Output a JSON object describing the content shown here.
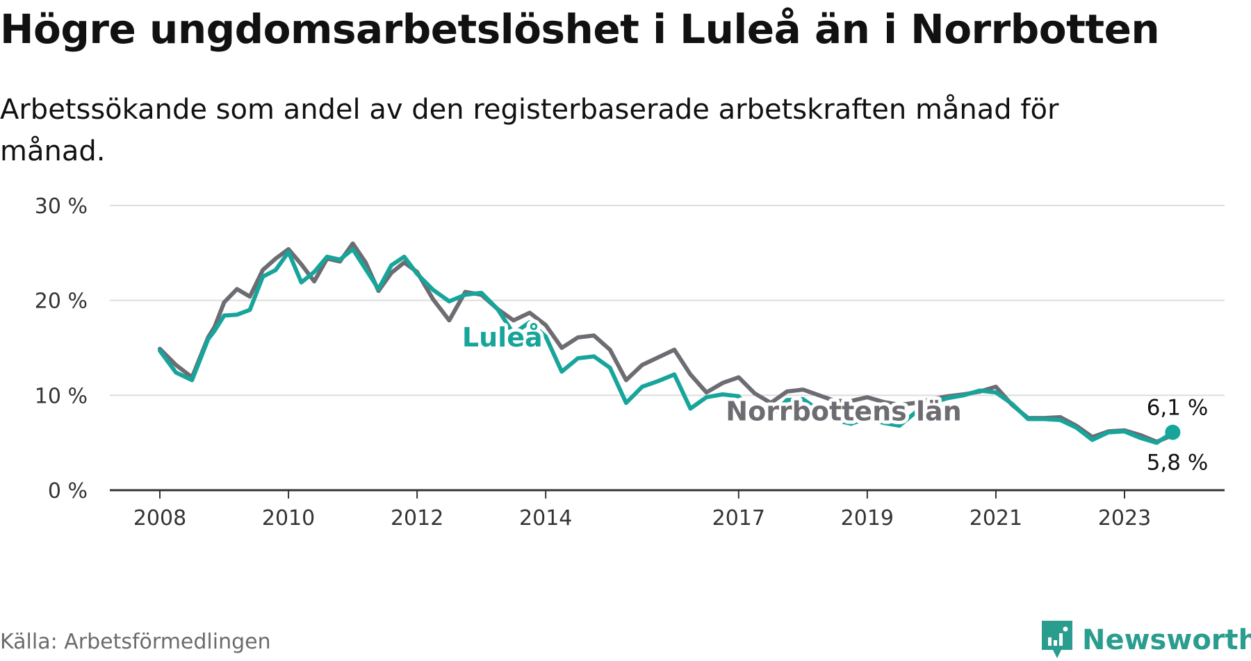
{
  "title": "Högre ungdomsarbetslöshet i Luleå än i Norrbotten",
  "subtitle": "Arbetssökande som andel av den registerbaserade arbetskraften månad för månad.",
  "source": "Källa: Arbetsförmedlingen",
  "brand": {
    "name": "Newsworthy",
    "icon": "newsworthy-logo-icon",
    "color": "#2a9d8f"
  },
  "colors": {
    "lulea": "#17a59b",
    "norrbotten": "#6c6c72",
    "grid": "#dddddd",
    "axis": "#333333"
  },
  "chart_data": {
    "type": "line",
    "title": "Högre ungdomsarbetslöshet i Luleå än i Norrbotten",
    "xlabel": "",
    "ylabel": "",
    "ylim": [
      0,
      30
    ],
    "yticks": [
      0,
      10,
      20,
      30
    ],
    "ytick_labels": [
      "0 %",
      "10 %",
      "20 %",
      "30 %"
    ],
    "xlim": [
      2008.0,
      2024.6
    ],
    "xticks": [
      2008,
      2010,
      2012,
      2014,
      2017,
      2019,
      2021,
      2023
    ],
    "xtick_labels": [
      "2008",
      "2010",
      "2012",
      "2014",
      "2017",
      "2019",
      "2021",
      "2023"
    ],
    "grid": true,
    "series": [
      {
        "name": "Norrbottens län",
        "color": "#6c6c72",
        "label_pos": [
          2016.8,
          8.3
        ],
        "x": [
          2008.0,
          2008.25,
          2008.5,
          2008.75,
          2008.85,
          2009.0,
          2009.2,
          2009.4,
          2009.6,
          2009.8,
          2010.0,
          2010.2,
          2010.4,
          2010.6,
          2010.8,
          2011.0,
          2011.2,
          2011.4,
          2011.6,
          2011.8,
          2012.0,
          2012.25,
          2012.5,
          2012.75,
          2013.0,
          2013.25,
          2013.5,
          2013.75,
          2014.0,
          2014.25,
          2014.5,
          2014.75,
          2015.0,
          2015.25,
          2015.5,
          2015.75,
          2016.0,
          2016.25,
          2016.5,
          2016.75,
          2017.0,
          2017.25,
          2017.5,
          2017.75,
          2018.0,
          2018.25,
          2018.5,
          2018.75,
          2019.0,
          2019.25,
          2019.5,
          2019.75,
          2020.0,
          2020.25,
          2020.5,
          2020.75,
          2021.0,
          2021.25,
          2021.5,
          2021.75,
          2022.0,
          2022.25,
          2022.5,
          2022.75,
          2023.0,
          2023.25,
          2023.5,
          2023.75
        ],
        "y": [
          14.9,
          13.2,
          11.9,
          16.1,
          17.2,
          19.8,
          21.2,
          20.4,
          23.2,
          24.4,
          25.4,
          23.8,
          22.0,
          24.4,
          24.1,
          26.0,
          24.0,
          21.0,
          22.9,
          24.0,
          23.0,
          20.1,
          17.9,
          20.9,
          20.6,
          19.1,
          17.9,
          18.7,
          17.4,
          15.0,
          16.1,
          16.3,
          14.8,
          11.6,
          13.2,
          14.0,
          14.8,
          12.2,
          10.3,
          11.3,
          11.9,
          10.2,
          9.2,
          10.4,
          10.6,
          10.0,
          9.4,
          9.4,
          9.8,
          9.3,
          9.0,
          9.2,
          9.6,
          9.9,
          10.1,
          10.4,
          10.9,
          9.0,
          7.6,
          7.6,
          7.7,
          6.8,
          5.6,
          6.2,
          6.3,
          5.8,
          5.1,
          5.8
        ]
      },
      {
        "name": "Luleå",
        "color": "#17a59b",
        "label_pos": [
          2012.7,
          16.1
        ],
        "x": [
          2008.0,
          2008.25,
          2008.5,
          2008.75,
          2008.85,
          2009.0,
          2009.2,
          2009.4,
          2009.6,
          2009.8,
          2010.0,
          2010.2,
          2010.4,
          2010.6,
          2010.8,
          2011.0,
          2011.2,
          2011.4,
          2011.6,
          2011.8,
          2012.0,
          2012.25,
          2012.5,
          2012.75,
          2013.0,
          2013.25,
          2013.5,
          2013.75,
          2014.0,
          2014.25,
          2014.5,
          2014.75,
          2015.0,
          2015.25,
          2015.5,
          2015.75,
          2016.0,
          2016.25,
          2016.5,
          2016.75,
          2017.0,
          2017.25,
          2017.5,
          2017.75,
          2018.0,
          2018.25,
          2018.5,
          2018.75,
          2019.0,
          2019.25,
          2019.5,
          2019.75,
          2020.0,
          2020.25,
          2020.5,
          2020.75,
          2021.0,
          2021.25,
          2021.5,
          2021.75,
          2022.0,
          2022.25,
          2022.5,
          2022.75,
          2023.0,
          2023.25,
          2023.5,
          2023.75
        ],
        "y": [
          14.7,
          12.4,
          11.6,
          15.9,
          16.8,
          18.4,
          18.5,
          19.0,
          22.5,
          23.2,
          25.1,
          21.9,
          23.0,
          24.6,
          24.3,
          25.4,
          23.3,
          21.2,
          23.7,
          24.6,
          22.8,
          21.1,
          19.9,
          20.6,
          20.8,
          19.1,
          16.5,
          17.7,
          16.2,
          12.5,
          13.9,
          14.1,
          12.9,
          9.2,
          10.9,
          11.5,
          12.2,
          8.6,
          9.8,
          10.1,
          9.9,
          7.5,
          7.8,
          9.5,
          9.6,
          8.4,
          7.4,
          7.0,
          7.6,
          7.1,
          6.8,
          8.2,
          9.2,
          9.7,
          10.0,
          10.5,
          10.3,
          9.1,
          7.5,
          7.5,
          7.4,
          6.6,
          5.3,
          6.1,
          6.2,
          5.5,
          5.0,
          6.1
        ]
      }
    ],
    "end_labels": {
      "top": "6,1 %",
      "bottom": "5,8 %"
    }
  }
}
